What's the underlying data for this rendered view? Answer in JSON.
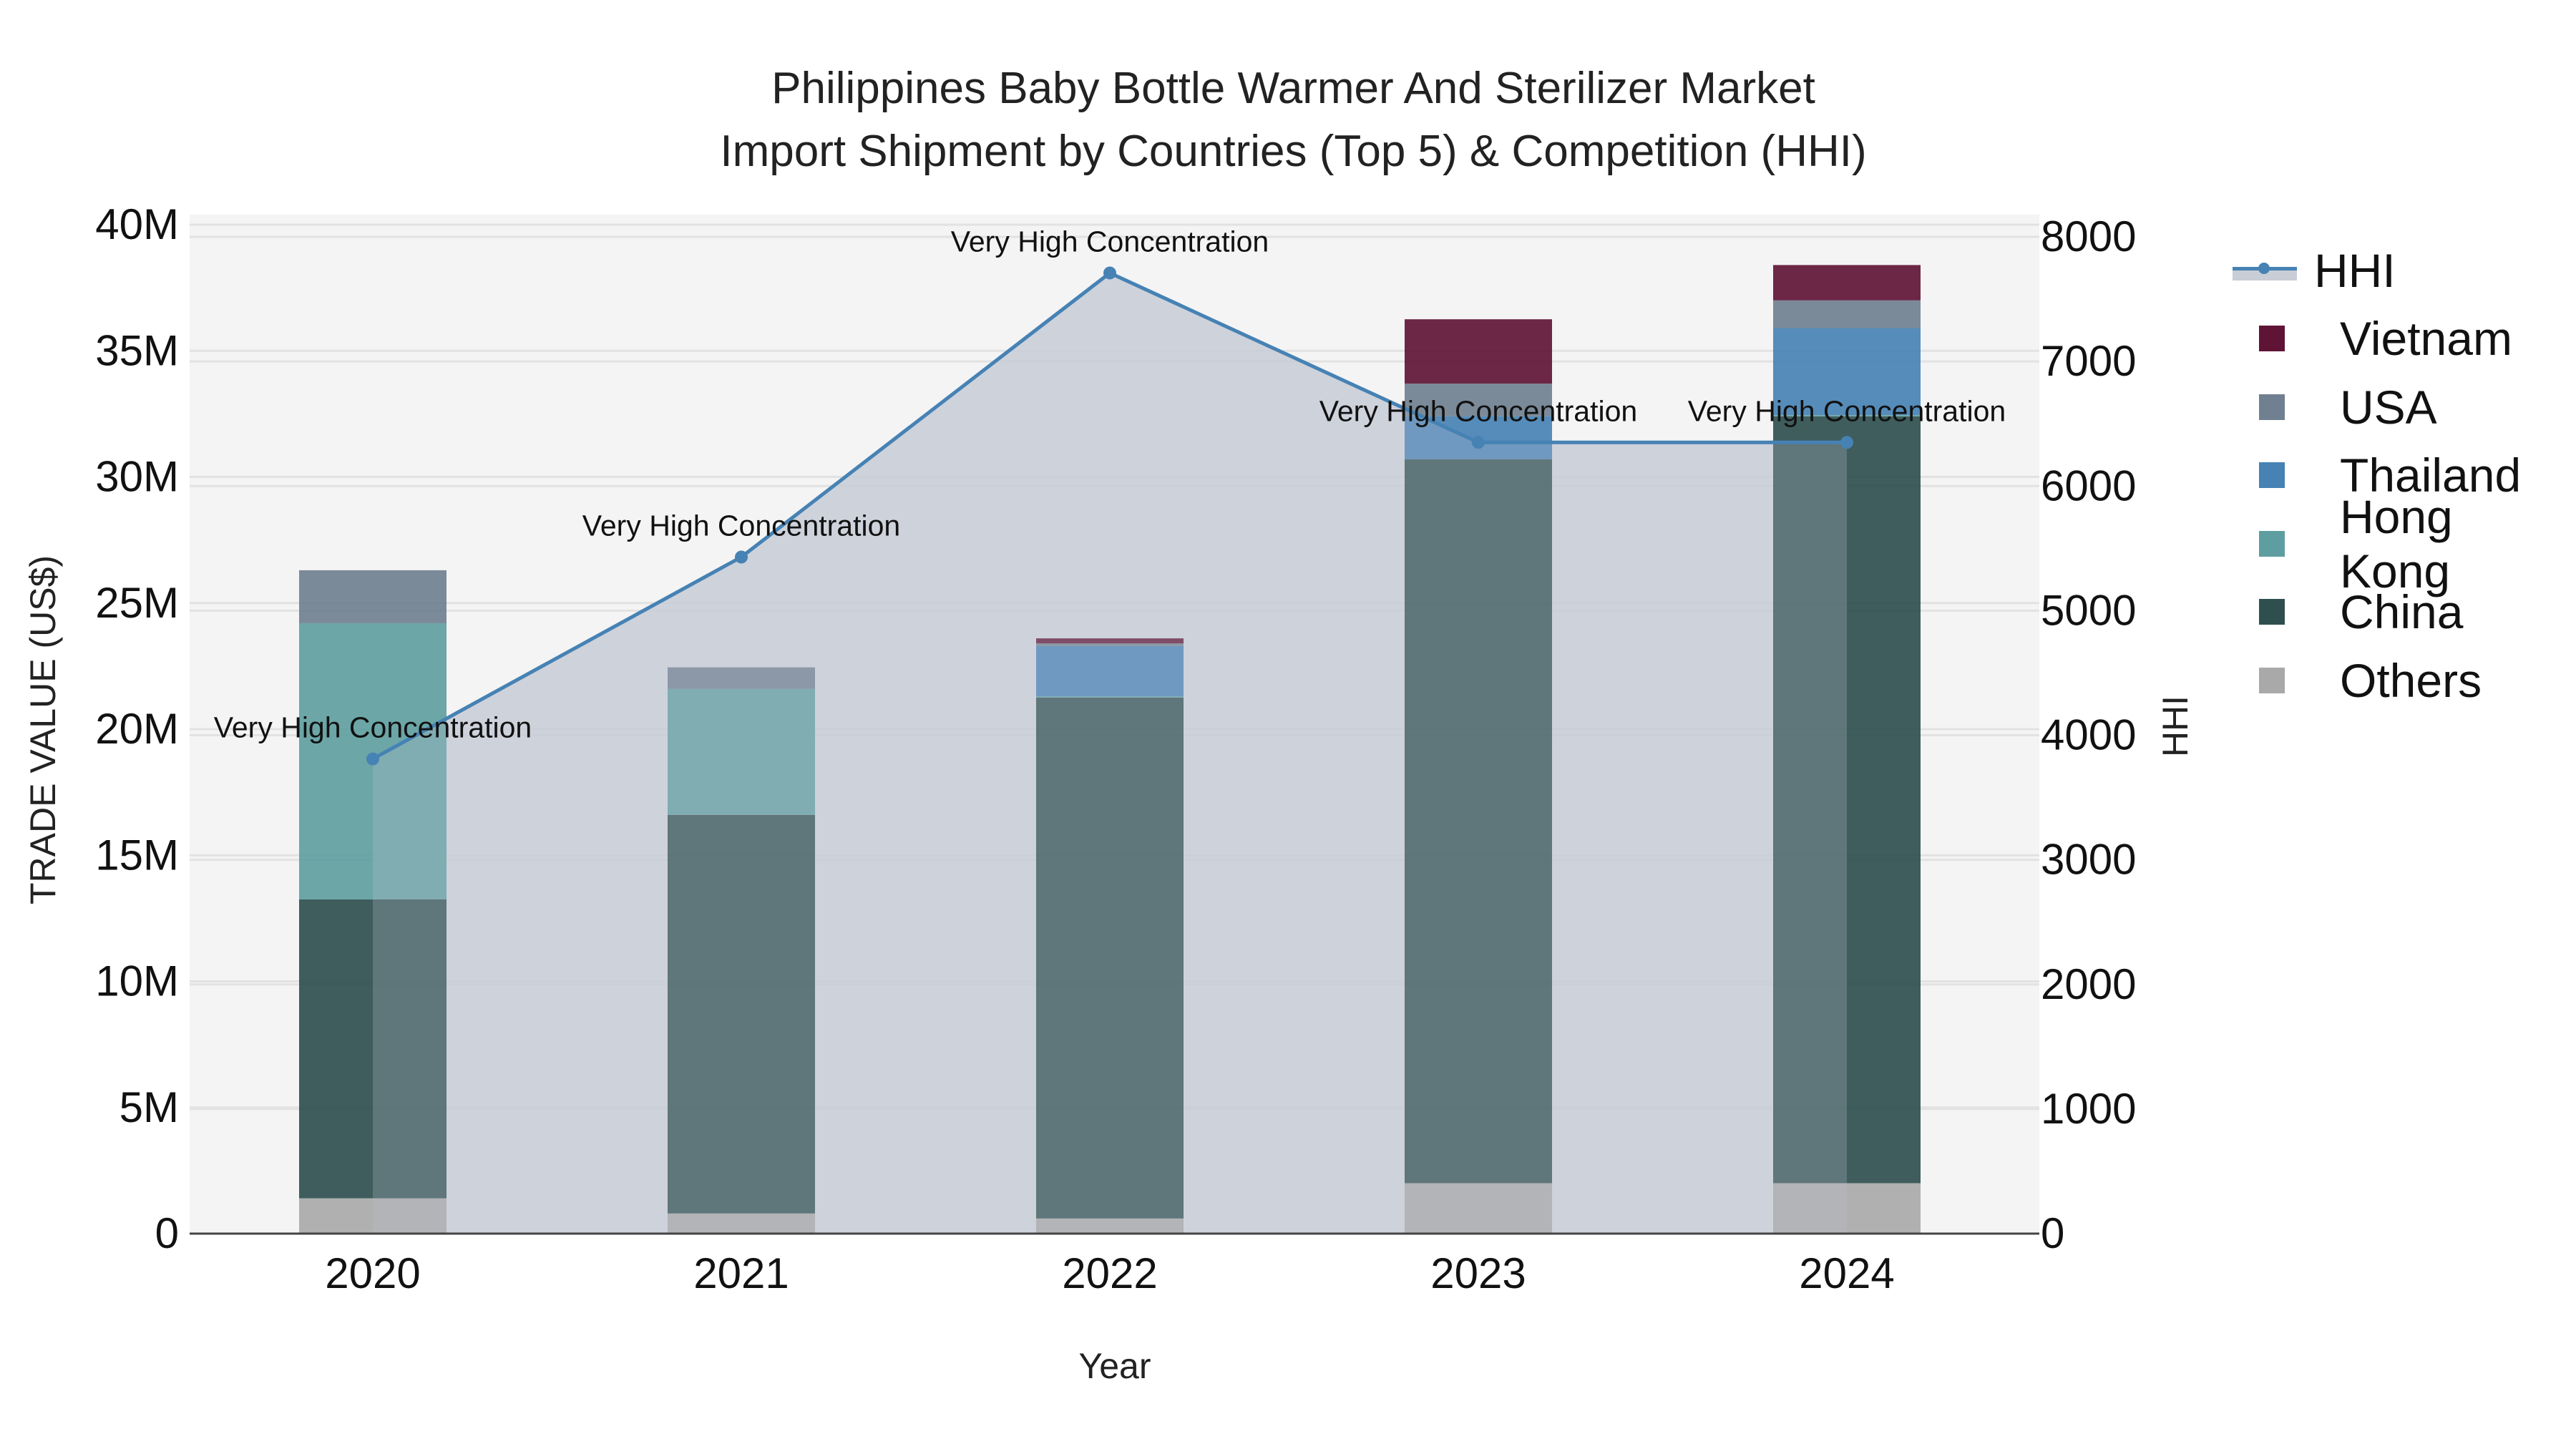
{
  "title": {
    "line1": "Philippines Baby Bottle Warmer And Sterilizer Market",
    "line2": "Import Shipment by Countries (Top 5) & Competition (HHI)"
  },
  "axes": {
    "x_title": "Year",
    "y_left_title": "TRADE VALUE (US$)",
    "y_right_title": "HHI",
    "y_left_ticks": [
      "0",
      "5M",
      "10M",
      "15M",
      "20M",
      "25M",
      "30M",
      "35M",
      "40M"
    ],
    "y_right_ticks": [
      "0",
      "1000",
      "2000",
      "3000",
      "4000",
      "5000",
      "6000",
      "7000",
      "8000"
    ]
  },
  "legend": [
    {
      "label": "HHI",
      "type": "line",
      "color": "#4682b4"
    },
    {
      "label": "Vietnam",
      "type": "bar",
      "color": "#5f1436"
    },
    {
      "label": "USA",
      "type": "bar",
      "color": "#708090"
    },
    {
      "label": "Thailand",
      "type": "bar",
      "color": "#4682b4"
    },
    {
      "label": "Hong Kong",
      "type": "bar",
      "color": "#5f9ea0"
    },
    {
      "label": "China",
      "type": "bar",
      "color": "#2f4f4f"
    },
    {
      "label": "Others",
      "type": "bar",
      "color": "#a9a9a9"
    }
  ],
  "colors": {
    "plot_bg": "#f4f4f4",
    "hhi_fill": "#c8cdd6",
    "hhi_line": "#4682b4",
    "grid": "#e2e2e2",
    "axis_line": "#444444"
  },
  "chart_data": {
    "type": "bar",
    "stacked": true,
    "title": "Philippines Baby Bottle Warmer And Sterilizer Market Import Shipment by Countries (Top 5) & Competition (HHI)",
    "xlabel": "Year",
    "ylabel": "TRADE VALUE (US$)",
    "y2label": "HHI",
    "categories": [
      "2020",
      "2021",
      "2022",
      "2023",
      "2024"
    ],
    "ylim": [
      0,
      40000000
    ],
    "y2lim": [
      0,
      8000
    ],
    "grid": true,
    "legend_position": "right",
    "series": [
      {
        "name": "Others",
        "color": "#a9a9a9",
        "values": [
          1400000,
          800000,
          600000,
          2000000,
          2000000
        ]
      },
      {
        "name": "China",
        "color": "#2f4f4f",
        "values": [
          11850000,
          15800000,
          20650000,
          28700000,
          30400000
        ]
      },
      {
        "name": "Hong Kong",
        "color": "#5f9ea0",
        "values": [
          10950000,
          5000000,
          50000,
          0,
          50000
        ]
      },
      {
        "name": "Thailand",
        "color": "#4682b4",
        "values": [
          0,
          0,
          2000000,
          1700000,
          3450000
        ]
      },
      {
        "name": "USA",
        "color": "#708090",
        "values": [
          2100000,
          850000,
          100000,
          1300000,
          1100000
        ]
      },
      {
        "name": "Vietnam",
        "color": "#5f1436",
        "values": [
          0,
          0,
          200000,
          2550000,
          1400000
        ]
      }
    ],
    "line_series": {
      "name": "HHI",
      "axis": "right",
      "type": "area+line",
      "color": "#4682b4",
      "values": [
        3810,
        5430,
        7710,
        6350,
        6350
      ],
      "annotations": [
        "Very High Concentration",
        "Very High Concentration",
        "Very High Concentration",
        "Very High Concentration",
        "Very High Concentration"
      ]
    }
  }
}
